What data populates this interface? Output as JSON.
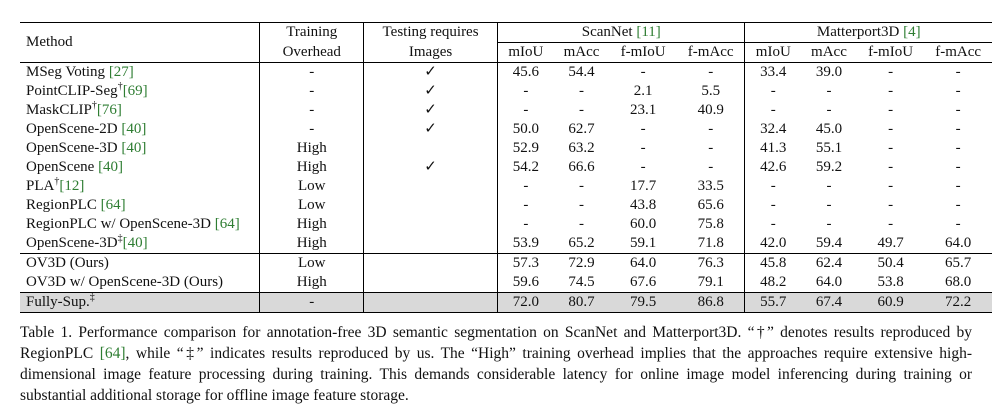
{
  "table": {
    "headers": {
      "method": "Method",
      "training_overhead": [
        "Training",
        "Overhead"
      ],
      "testing_images": [
        "Testing requires",
        "Images"
      ],
      "scannet_group": "ScanNet",
      "scannet_cite": "[11]",
      "matterport_group": "Matterport3D",
      "matterport_cite": "[4]",
      "metrics": [
        "mIoU",
        "mAcc",
        "f-mIoU",
        "f-mAcc",
        "mIoU",
        "mAcc",
        "f-mIoU",
        "f-mAcc"
      ]
    },
    "rows": [
      {
        "name": "MSeg Voting ",
        "cite": "[27]",
        "sup": "",
        "overhead": "-",
        "images": "✓",
        "values": [
          "45.6",
          "54.4",
          "-",
          "-",
          "33.4",
          "39.0",
          "-",
          "-"
        ]
      },
      {
        "name": "PointCLIP-Seg",
        "cite": "[69]",
        "sup": "†",
        "overhead": "-",
        "images": "✓",
        "values": [
          "-",
          "-",
          "2.1",
          "5.5",
          "-",
          "-",
          "-",
          "-"
        ]
      },
      {
        "name": "MaskCLIP",
        "cite": "[76]",
        "sup": "†",
        "overhead": "-",
        "images": "✓",
        "values": [
          "-",
          "-",
          "23.1",
          "40.9",
          "-",
          "-",
          "-",
          "-"
        ]
      },
      {
        "name": "OpenScene-2D ",
        "cite": "[40]",
        "sup": "",
        "overhead": "-",
        "images": "✓",
        "values": [
          "50.0",
          "62.7",
          "-",
          "-",
          "32.4",
          "45.0",
          "-",
          "-"
        ]
      },
      {
        "name": "OpenScene-3D ",
        "cite": "[40]",
        "sup": "",
        "overhead": "High",
        "images": "",
        "values": [
          "52.9",
          "63.2",
          "-",
          "-",
          "41.3",
          "55.1",
          "-",
          "-"
        ]
      },
      {
        "name": "OpenScene ",
        "cite": "[40]",
        "sup": "",
        "overhead": "High",
        "images": "✓",
        "values": [
          "54.2",
          "66.6",
          "-",
          "-",
          "42.6",
          "59.2",
          "-",
          "-"
        ]
      },
      {
        "name": "PLA",
        "cite": "[12]",
        "sup": "†",
        "overhead": "Low",
        "images": "",
        "values": [
          "-",
          "-",
          "17.7",
          "33.5",
          "-",
          "-",
          "-",
          "-"
        ]
      },
      {
        "name": "RegionPLC ",
        "cite": "[64]",
        "sup": "",
        "overhead": "Low",
        "images": "",
        "values": [
          "-",
          "-",
          "43.8",
          "65.6",
          "-",
          "-",
          "-",
          "-"
        ]
      },
      {
        "name": "RegionPLC w/ OpenScene-3D ",
        "cite": "[64]",
        "sup": "",
        "overhead": "High",
        "images": "",
        "values": [
          "-",
          "-",
          "60.0",
          "75.8",
          "-",
          "-",
          "-",
          "-"
        ]
      },
      {
        "name": "OpenScene-3D",
        "cite": "[40]",
        "sup": "‡",
        "overhead": "High",
        "images": "",
        "values": [
          "53.9",
          "65.2",
          "59.1",
          "71.8",
          "42.0",
          "59.4",
          "49.7",
          "64.0"
        ]
      }
    ],
    "ours_rows": [
      {
        "name": "OV3D (Ours)",
        "overhead": "Low",
        "images": "",
        "bold": false,
        "values": [
          "57.3",
          "72.9",
          "64.0",
          "76.3",
          "45.8",
          "62.4",
          "50.4",
          "65.7"
        ]
      },
      {
        "name": "OV3D w/ OpenScene-3D (Ours)",
        "overhead": "High",
        "images": "",
        "bold": true,
        "values": [
          "59.6",
          "74.5",
          "67.6",
          "79.1",
          "48.2",
          "64.0",
          "53.8",
          "68.0"
        ]
      }
    ],
    "fully_sup": {
      "name": "Fully-Sup.",
      "sup": "‡",
      "overhead": "-",
      "images": "",
      "values": [
        "72.0",
        "80.7",
        "79.5",
        "86.8",
        "55.7",
        "67.4",
        "60.9",
        "72.2"
      ]
    }
  },
  "caption": {
    "part1": "Table 1.  Performance comparison for annotation-free 3D semantic segmentation on ScanNet and Matterport3D. “†” denotes results reproduced by RegionPLC ",
    "cite": "[64]",
    "part2": ", while “‡” indicates results reproduced by us. The “High” training overhead implies that the approaches require extensive high-dimensional image feature processing during training. This demands considerable latency for online image model inferencing during training or substantial additional storage for offline image feature storage."
  }
}
